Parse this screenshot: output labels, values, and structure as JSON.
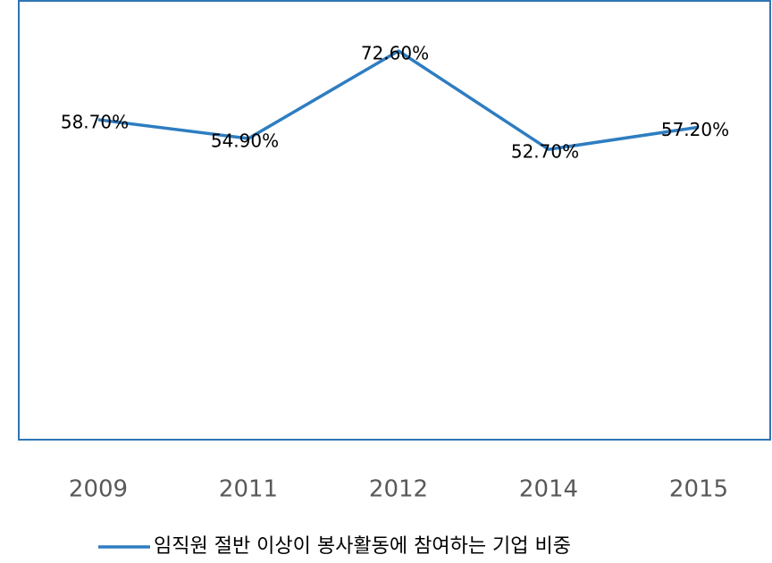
{
  "chart_data": {
    "type": "line",
    "categories": [
      "2009",
      "2011",
      "2012",
      "2014",
      "2015"
    ],
    "series": [
      {
        "name": "임직원 절반 이상이 봉사활동에 참여하는 기업 비중",
        "color": "#2e7dc1",
        "values": [
          58.7,
          54.9,
          72.6,
          52.7,
          57.2
        ],
        "value_labels": [
          "58.70%",
          "54.90%",
          "72.60%",
          "52.70%",
          "57.20%"
        ]
      }
    ],
    "ylim": [
      0,
      80
    ]
  }
}
